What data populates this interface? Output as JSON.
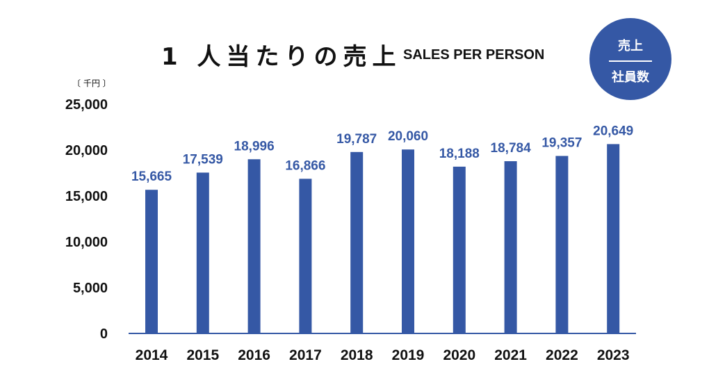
{
  "header": {
    "title_jp": "1 人当たりの売上",
    "title_en": "SALES PER PERSON"
  },
  "badge": {
    "numerator": "売上",
    "denominator": "社員数"
  },
  "unit_label": "〔 千円 〕",
  "colors": {
    "bar": "#3558a5",
    "axis": "#3558a5",
    "text": "#111111",
    "badge_bg": "#3558a5"
  },
  "chart_data": {
    "type": "bar",
    "categories": [
      "2014",
      "2015",
      "2016",
      "2017",
      "2018",
      "2019",
      "2020",
      "2021",
      "2022",
      "2023"
    ],
    "values": [
      15665,
      17539,
      18996,
      16866,
      19787,
      20060,
      18188,
      18784,
      19357,
      20649
    ],
    "data_labels": [
      "15,665",
      "17,539",
      "18,996",
      "16,866",
      "19,787",
      "20,060",
      "18,188",
      "18,784",
      "19,357",
      "20,649"
    ],
    "ylim": [
      0,
      25000
    ],
    "yticks": [
      0,
      5000,
      10000,
      15000,
      20000,
      25000
    ],
    "ytick_labels": [
      "0",
      "5,000",
      "10,000",
      "15,000",
      "20,000",
      "25,000"
    ],
    "grid": false,
    "legend": "none"
  }
}
